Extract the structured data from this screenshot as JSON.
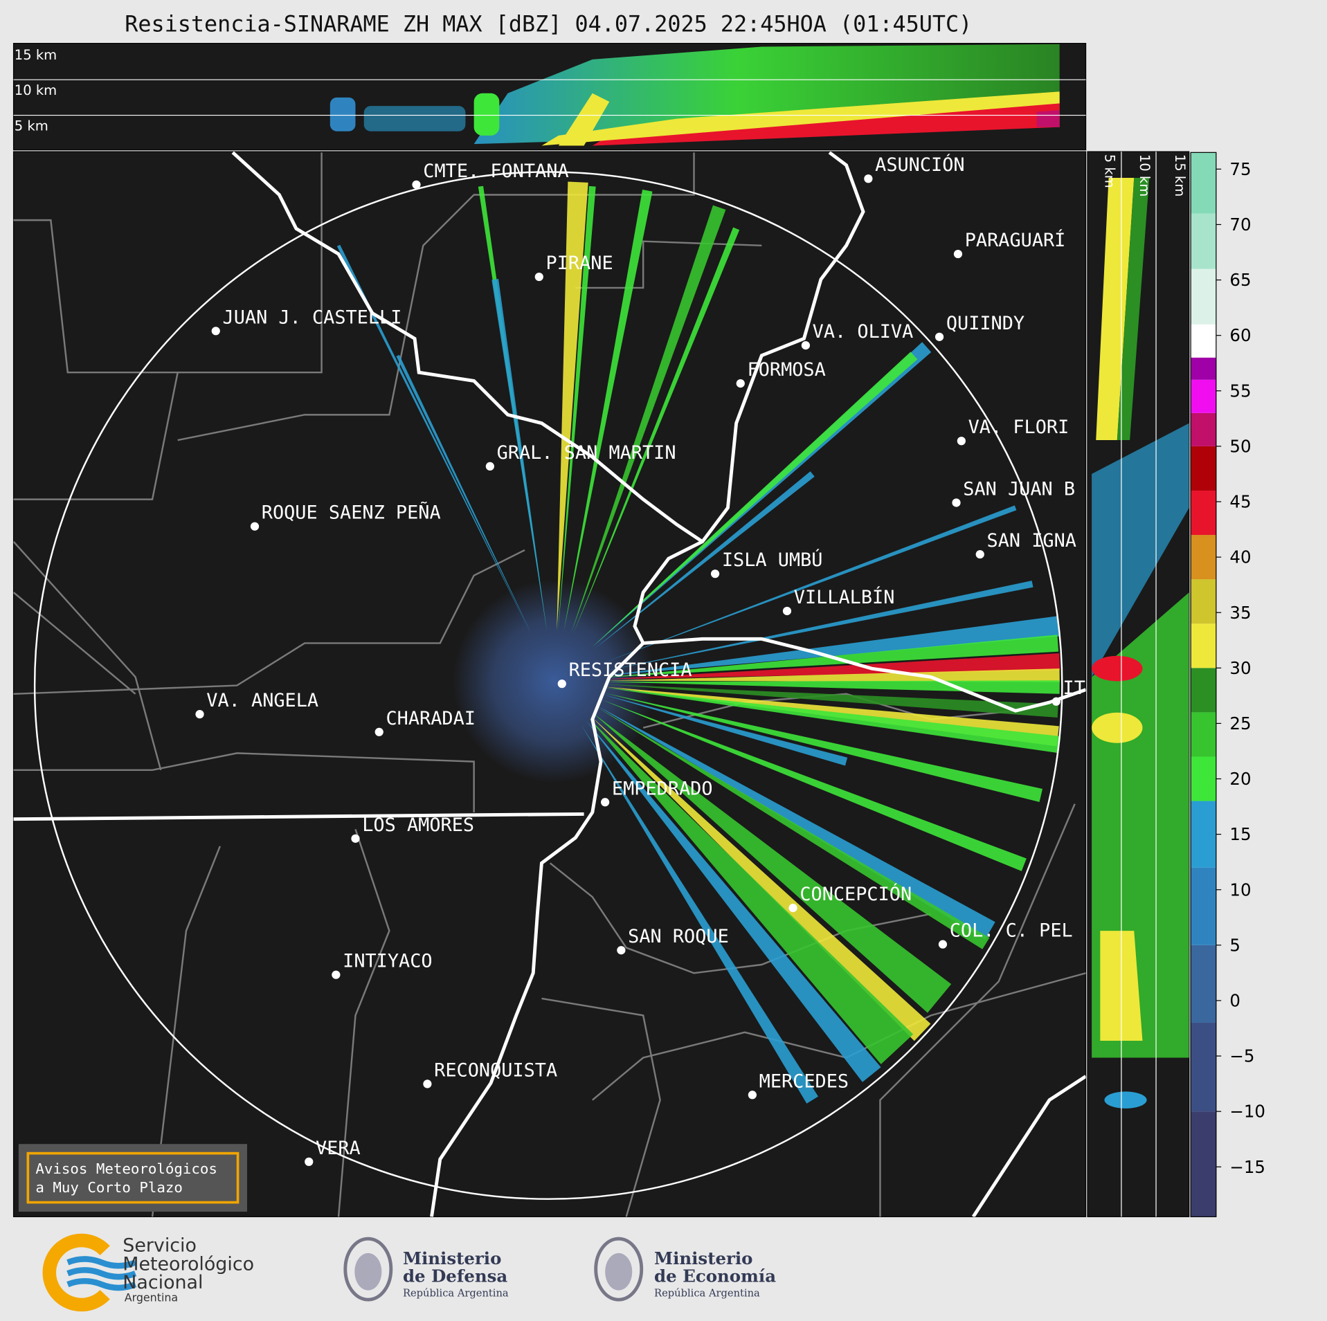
{
  "title": "Resistencia-SINARAME ZH MAX [dBZ] 04.07.2025 22:45HOA (01:45UTC)",
  "top_panel": {
    "height_labels": [
      "15 km",
      "10 km",
      "5 km"
    ]
  },
  "side_panel": {
    "height_labels": [
      "5 km",
      "10 km",
      "15 km"
    ]
  },
  "map": {
    "cities": [
      "CMTE. FONTANA",
      "PIRANE",
      "JUAN J. CASTELLI",
      "ASUNCIÓN",
      "PARAGUARÍ",
      "VA. OLIVA",
      "QUIINDY",
      "FORMOSA",
      "VA. FLORI",
      "GRAL. SAN MARTIN",
      "SAN JUAN B",
      "ROQUE SAENZ PEÑA",
      "SAN IGNA",
      "ISLA UMBÚ",
      "VILLALBÍN",
      "RESISTENCIA",
      "VA. ANGELA",
      "CHARADAI",
      "IT",
      "EMPEDRADO",
      "LOS AMORES",
      "CONCEPCIÓN",
      "COL. C. PEL",
      "SAN ROQUE",
      "INTIYACO",
      "RECONQUISTA",
      "MERCEDES",
      "VERA"
    ]
  },
  "colorbar": {
    "lim": [
      -19.5,
      76.5
    ],
    "ticks": [
      {
        "value": -15,
        "label": "−15"
      },
      {
        "value": -10,
        "label": "−10"
      },
      {
        "value": -5,
        "label": "−5"
      },
      0,
      5,
      10,
      15,
      20,
      25,
      30,
      35,
      40,
      45,
      50,
      55,
      60,
      65,
      70,
      75
    ],
    "bands": [
      {
        "from": -19.5,
        "color": "#3b3d6c"
      },
      {
        "from": -10,
        "color": "#3c4f85"
      },
      {
        "from": -2,
        "color": "#3a679e"
      },
      {
        "from": 5,
        "color": "#2f84c0"
      },
      {
        "from": 12,
        "color": "#2a9ed2"
      },
      {
        "from": 18,
        "color": "#3ee63a"
      },
      {
        "from": 22,
        "color": "#37c42f"
      },
      {
        "from": 26,
        "color": "#2b8f24"
      },
      {
        "from": 30,
        "color": "#eee83a"
      },
      {
        "from": 34,
        "color": "#cfc52c"
      },
      {
        "from": 38,
        "color": "#d8901e"
      },
      {
        "from": 42,
        "color": "#e8142c"
      },
      {
        "from": 46,
        "color": "#b00008"
      },
      {
        "from": 50,
        "color": "#c0106a"
      },
      {
        "from": 53,
        "color": "#f00ef0"
      },
      {
        "from": 56,
        "color": "#a000a8"
      },
      {
        "from": 58,
        "color": "#ffffff"
      },
      {
        "from": 61,
        "color": "#dcf2e8"
      },
      {
        "from": 66,
        "color": "#a8e4cc"
      },
      {
        "from": 71,
        "color": "#84dab6"
      }
    ]
  },
  "warning_box": {
    "lines": [
      "Avisos Meteorológicos",
      "a Muy Corto Plazo"
    ]
  },
  "footer": {
    "smn": [
      "Servicio",
      "Meteorológico",
      "Nacional",
      "Argentina"
    ],
    "defensa": [
      "Ministerio",
      "de Defensa",
      "República Argentina"
    ],
    "economia": [
      "Ministerio",
      "de Economía",
      "República Argentina"
    ]
  }
}
